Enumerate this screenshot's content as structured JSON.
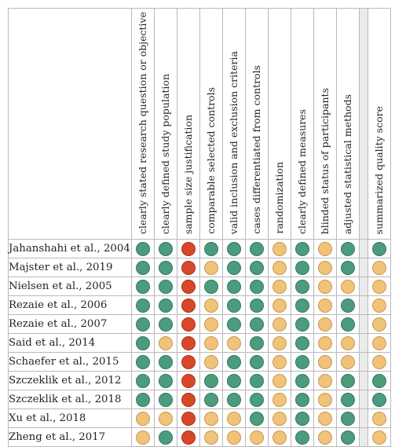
{
  "criteria": [
    "clearly stated research question or objective",
    "clearly defined study population",
    "sample size justification",
    "comparable selected controls",
    "valid inclusion and exclusion criteria",
    "cases differentiated from controls",
    "randomization",
    "clearly defined measures",
    "blinded status of participants",
    "adjusted statistical methods"
  ],
  "summary_header": "summarized quality score",
  "rating_colors": {
    "good": "#4d9b7d",
    "fair": "#f0c27a",
    "poor": "#d9472b"
  },
  "studies": [
    {
      "name": "Jahanshahi et al., 2004",
      "ratings": [
        "good",
        "good",
        "poor",
        "good",
        "good",
        "good",
        "fair",
        "good",
        "fair",
        "good"
      ],
      "summary": "good"
    },
    {
      "name": "Majster et al., 2019",
      "ratings": [
        "good",
        "good",
        "poor",
        "fair",
        "good",
        "good",
        "fair",
        "good",
        "fair",
        "good"
      ],
      "summary": "fair"
    },
    {
      "name": "Nielsen et al., 2005",
      "ratings": [
        "good",
        "good",
        "poor",
        "good",
        "good",
        "good",
        "fair",
        "good",
        "fair",
        "fair"
      ],
      "summary": "fair"
    },
    {
      "name": "Rezaie et al., 2006",
      "ratings": [
        "good",
        "good",
        "poor",
        "fair",
        "good",
        "good",
        "fair",
        "good",
        "fair",
        "good"
      ],
      "summary": "fair"
    },
    {
      "name": "Rezaie et al., 2007",
      "ratings": [
        "good",
        "good",
        "poor",
        "fair",
        "good",
        "good",
        "fair",
        "good",
        "fair",
        "good"
      ],
      "summary": "fair"
    },
    {
      "name": "Said et al., 2014",
      "ratings": [
        "good",
        "fair",
        "poor",
        "fair",
        "fair",
        "good",
        "fair",
        "good",
        "fair",
        "fair"
      ],
      "summary": "fair"
    },
    {
      "name": "Schaefer et al., 2015",
      "ratings": [
        "good",
        "good",
        "poor",
        "fair",
        "good",
        "good",
        "fair",
        "good",
        "fair",
        "fair"
      ],
      "summary": "fair"
    },
    {
      "name": "Szczeklik et al., 2012",
      "ratings": [
        "good",
        "good",
        "poor",
        "good",
        "good",
        "good",
        "fair",
        "good",
        "fair",
        "good"
      ],
      "summary": "good"
    },
    {
      "name": "Szczeklik et al., 2018",
      "ratings": [
        "good",
        "good",
        "poor",
        "good",
        "good",
        "good",
        "fair",
        "good",
        "fair",
        "good"
      ],
      "summary": "good"
    },
    {
      "name": "Xu et al., 2018",
      "ratings": [
        "fair",
        "fair",
        "poor",
        "fair",
        "fair",
        "good",
        "fair",
        "good",
        "fair",
        "good"
      ],
      "summary": "fair"
    },
    {
      "name": "Zheng et al., 2017",
      "ratings": [
        "fair",
        "good",
        "poor",
        "fair",
        "fair",
        "fair",
        "fair",
        "good",
        "fair",
        "good"
      ],
      "summary": "fair"
    }
  ]
}
